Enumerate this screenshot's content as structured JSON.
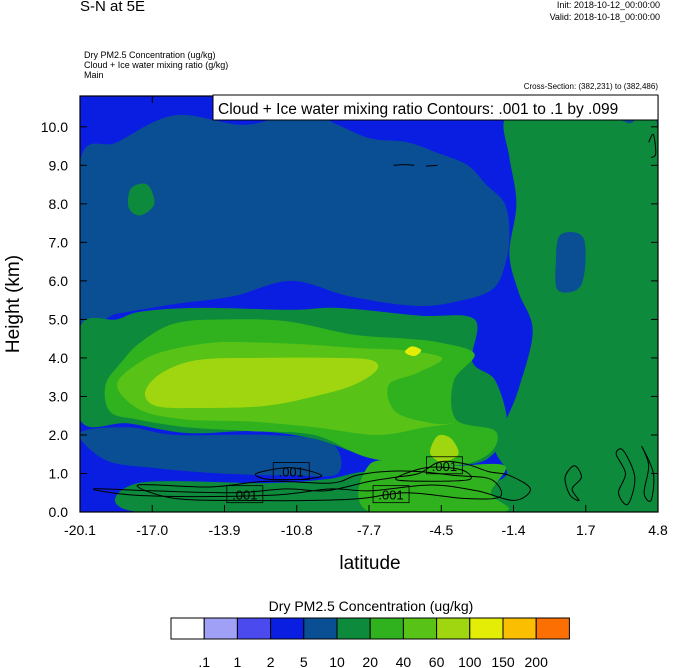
{
  "header": {
    "title": "S-N at 5E",
    "init": "Init: 2018-10-12_00:00:00",
    "valid": "Valid: 2018-10-18_00:00:00",
    "meta_lines": [
      "Dry PM2.5 Concentration   (ug/kg)",
      "Cloud + Ice water mixing ratio   (g/kg)",
      "Main"
    ],
    "cross_section": "Cross-Section: (382,231) to (382,486)"
  },
  "chart_data": {
    "type": "heatmap",
    "title": "",
    "contour_title": "Cloud + Ice water mixing ratio Contours: .001 to .1 by .099",
    "xlabel": "latitude",
    "ylabel": "Height (km)",
    "xlim": [
      -20.1,
      4.8
    ],
    "ylim": [
      0.0,
      10.8
    ],
    "x_ticks": [
      "-20.1",
      "-17.0",
      "-13.9",
      "-10.8",
      "-7.7",
      "-4.5",
      "-1.4",
      "1.7",
      "4.8"
    ],
    "y_ticks": [
      "0.0",
      "1.0",
      "2.0",
      "3.0",
      "4.0",
      "5.0",
      "6.0",
      "7.0",
      "8.0",
      "9.0",
      "10.0"
    ],
    "y_tick_values": [
      0,
      1,
      2,
      3,
      4,
      5,
      6,
      7,
      8,
      9,
      10
    ],
    "contour_labels": [
      {
        "text": ".001",
        "lat": -11.0,
        "h": 1.05
      },
      {
        "text": ".001",
        "lat": -13.0,
        "h": 0.45
      },
      {
        "text": ".001",
        "lat": -4.4,
        "h": 1.2
      },
      {
        "text": ".001",
        "lat": -6.7,
        "h": 0.45
      }
    ],
    "colorbar": {
      "title": "Dry PM2.5 Concentration  (ug/kg)",
      "labels": [
        ".1",
        "1",
        "2",
        "5",
        "10",
        "20",
        "40",
        "60",
        "100",
        "150",
        "200"
      ],
      "colors": [
        "#ffffff",
        "#a0a0f7",
        "#4a4aef",
        "#0a1ee1",
        "#0a4f94",
        "#0d8a3c",
        "#2fb21e",
        "#58c217",
        "#9fd60f",
        "#e4ed06",
        "#fcbe00",
        "#fc6f03",
        "#fb1010"
      ]
    },
    "regions": [
      {
        "lvl": 3,
        "pts": [
          [
            -20.1,
            0
          ],
          [
            4.8,
            0
          ],
          [
            4.8,
            10.8
          ],
          [
            -20.1,
            10.8
          ]
        ]
      },
      {
        "lvl": 4,
        "pts": [
          [
            -20.1,
            9.1
          ],
          [
            -18.5,
            9.6
          ],
          [
            -16,
            10.3
          ],
          [
            -13,
            10.05
          ],
          [
            -10.5,
            10.4
          ],
          [
            -9,
            10.05
          ],
          [
            -7.6,
            9.7
          ],
          [
            -6,
            9.6
          ],
          [
            -4.6,
            9.3
          ],
          [
            -3.4,
            9.0
          ],
          [
            -2.6,
            8.5
          ],
          [
            -1.8,
            8.0
          ],
          [
            -1.6,
            7.2
          ],
          [
            -1.8,
            6.4
          ],
          [
            -2.3,
            5.8
          ],
          [
            -3.6,
            5.5
          ],
          [
            -5.6,
            5.35
          ],
          [
            -8.5,
            5.6
          ],
          [
            -11,
            6.0
          ],
          [
            -13.5,
            5.6
          ],
          [
            -16,
            5.4
          ],
          [
            -18.5,
            5.15
          ],
          [
            -20.1,
            5.0
          ]
        ]
      },
      {
        "lvl": 4,
        "pts": [
          [
            -20.1,
            2.05
          ],
          [
            -19,
            1.35
          ],
          [
            -17,
            1.15
          ],
          [
            -14,
            1.0
          ],
          [
            -11,
            0.95
          ],
          [
            -9,
            1.0
          ],
          [
            -9.3,
            1.8
          ],
          [
            -12,
            2.0
          ],
          [
            -16,
            2.0
          ],
          [
            -18,
            2.2
          ]
        ]
      },
      {
        "lvl": 4,
        "pts": [
          [
            2.5,
            10.8
          ],
          [
            4.8,
            10.8
          ],
          [
            4.8,
            8.6
          ],
          [
            4.0,
            8.2
          ],
          [
            2.5,
            8.8
          ]
        ]
      },
      {
        "lvl": 4,
        "pts": [
          [
            -0.9,
            7.2
          ],
          [
            0.6,
            7.5
          ],
          [
            1.4,
            7.3
          ],
          [
            1.4,
            5.8
          ],
          [
            0.3,
            5.55
          ],
          [
            -0.9,
            6.1
          ]
        ]
      },
      {
        "lvl": 5,
        "pts": [
          [
            -1.8,
            10.2
          ],
          [
            -0.5,
            10.5
          ],
          [
            1.5,
            10.6
          ],
          [
            3.5,
            10.1
          ],
          [
            4.8,
            9.8
          ],
          [
            4.8,
            0
          ],
          [
            -1.8,
            0
          ],
          [
            -2.5,
            0.6
          ],
          [
            -1.7,
            1.0
          ],
          [
            -2.2,
            1.6
          ],
          [
            -1.8,
            2.3
          ],
          [
            -1.2,
            3.2
          ],
          [
            -0.6,
            4.7
          ],
          [
            -1.2,
            5.7
          ],
          [
            -1.6,
            6.7
          ],
          [
            -1.3,
            8.0
          ],
          [
            -1.6,
            9.2
          ]
        ]
      },
      {
        "lvl": 5,
        "pts": [
          [
            -20.1,
            4.8
          ],
          [
            -18.5,
            5.0
          ],
          [
            -17.5,
            5.2
          ],
          [
            -15,
            5.3
          ],
          [
            -11,
            5.25
          ],
          [
            -9,
            5.3
          ],
          [
            -5.5,
            5.1
          ],
          [
            -3.1,
            5.0
          ],
          [
            -3.2,
            3.9
          ],
          [
            -2.2,
            3.4
          ],
          [
            -1.7,
            2.2
          ],
          [
            -2.5,
            1.4
          ],
          [
            -4,
            1.2
          ],
          [
            -5.5,
            1.25
          ],
          [
            -8,
            1.5
          ],
          [
            -10,
            1.9
          ],
          [
            -12.5,
            2.1
          ],
          [
            -15.5,
            2.05
          ],
          [
            -18,
            2.3
          ],
          [
            -20.1,
            2.4
          ]
        ]
      },
      {
        "lvl": 5,
        "pts": [
          [
            -17.9,
            8.4
          ],
          [
            -17.2,
            8.5
          ],
          [
            -16.9,
            8.0
          ],
          [
            -17.5,
            7.7
          ],
          [
            -18,
            7.9
          ]
        ]
      },
      {
        "lvl": 5,
        "pts": [
          [
            -17.6,
            0.75
          ],
          [
            -12,
            0.75
          ],
          [
            -9.5,
            0.85
          ],
          [
            -7.6,
            1.0
          ],
          [
            -7.6,
            0
          ],
          [
            -17.6,
            0
          ]
        ]
      },
      {
        "lvl": 4,
        "pts": [
          [
            0.6,
            7.2
          ],
          [
            1.6,
            7.1
          ],
          [
            1.5,
            5.9
          ],
          [
            0.5,
            5.75
          ],
          [
            0.4,
            6.5
          ]
        ]
      },
      {
        "lvl": 6,
        "pts": [
          [
            -19,
            3.3
          ],
          [
            -18.3,
            3.9
          ],
          [
            -17.5,
            4.4
          ],
          [
            -16,
            4.9
          ],
          [
            -13.8,
            5.0
          ],
          [
            -11.2,
            4.95
          ],
          [
            -8.3,
            4.6
          ],
          [
            -6,
            4.5
          ],
          [
            -4.6,
            4.4
          ],
          [
            -3.1,
            4.1
          ],
          [
            -4.0,
            3.4
          ],
          [
            -3.9,
            2.4
          ],
          [
            -2.2,
            2.1
          ],
          [
            -2.5,
            1.5
          ],
          [
            -4.2,
            1.2
          ],
          [
            -7.6,
            1.4
          ],
          [
            -10,
            2.0
          ],
          [
            -12.8,
            2.1
          ],
          [
            -15.5,
            2.2
          ],
          [
            -17.6,
            2.4
          ],
          [
            -18.8,
            2.6
          ]
        ]
      },
      {
        "lvl": 6,
        "pts": [
          [
            -7.6,
            0
          ],
          [
            -1.9,
            0
          ],
          [
            -2.4,
            0.5
          ],
          [
            -1.8,
            1.2
          ],
          [
            -4,
            1.2
          ],
          [
            -5.5,
            1.25
          ],
          [
            -7.6,
            1.25
          ]
        ]
      },
      {
        "lvl": 7,
        "pts": [
          [
            -18.5,
            3.3
          ],
          [
            -17.5,
            3.9
          ],
          [
            -16.3,
            4.2
          ],
          [
            -14.3,
            4.4
          ],
          [
            -12.5,
            4.4
          ],
          [
            -10.4,
            4.35
          ],
          [
            -8,
            4.25
          ],
          [
            -6.2,
            4.2
          ],
          [
            -4.5,
            4.0
          ],
          [
            -5.6,
            3.6
          ],
          [
            -6.8,
            3.3
          ],
          [
            -6.5,
            2.6
          ],
          [
            -4.9,
            2.3
          ],
          [
            -4.0,
            2.3
          ],
          [
            -5.2,
            2.2
          ],
          [
            -7.3,
            2.0
          ],
          [
            -10,
            2.2
          ],
          [
            -12.8,
            2.35
          ],
          [
            -15.5,
            2.4
          ],
          [
            -17.5,
            2.65
          ]
        ]
      },
      {
        "lvl": 8,
        "pts": [
          [
            -17.3,
            3.1
          ],
          [
            -16.6,
            3.6
          ],
          [
            -15,
            3.95
          ],
          [
            -12.2,
            4.0
          ],
          [
            -9.3,
            4.0
          ],
          [
            -7.6,
            3.95
          ],
          [
            -7.3,
            3.7
          ],
          [
            -8.3,
            3.3
          ],
          [
            -10,
            3.0
          ],
          [
            -12.2,
            2.75
          ],
          [
            -15,
            2.7
          ],
          [
            -16.8,
            2.75
          ]
        ]
      },
      {
        "lvl": 8,
        "pts": [
          [
            -4.9,
            1.8
          ],
          [
            -4.6,
            2.0
          ],
          [
            -4.1,
            1.9
          ],
          [
            -3.8,
            1.5
          ],
          [
            -4.5,
            1.3
          ],
          [
            -5.0,
            1.5
          ]
        ]
      },
      {
        "lvl": 9,
        "pts": [
          [
            -6.1,
            4.15
          ],
          [
            -5.8,
            4.3
          ],
          [
            -5.4,
            4.2
          ],
          [
            -5.7,
            4.05
          ]
        ]
      }
    ],
    "contours": [
      [
        [
          -19.5,
          0.6
        ],
        [
          -17,
          0.55
        ],
        [
          -13.5,
          0.5
        ],
        [
          -11.2,
          0.6
        ],
        [
          -9.5,
          0.55
        ],
        [
          -7.6,
          0.8
        ],
        [
          -6.5,
          0.9
        ],
        [
          -5.5,
          1.0
        ],
        [
          -4.6,
          1.3
        ],
        [
          -3.5,
          1.25
        ],
        [
          -2.5,
          1.05
        ],
        [
          -1.6,
          0.95
        ],
        [
          -0.7,
          0.6
        ],
        [
          -1.4,
          0.3
        ],
        [
          -3,
          0.55
        ],
        [
          -5,
          0.7
        ],
        [
          -7.6,
          0.55
        ],
        [
          -9.3,
          0.6
        ],
        [
          -11.5,
          0.45
        ],
        [
          -15,
          0.4
        ],
        [
          -18,
          0.45
        ]
      ],
      [
        [
          -17.6,
          0.7
        ],
        [
          -14.5,
          0.65
        ],
        [
          -12,
          0.8
        ],
        [
          -9.3,
          0.75
        ],
        [
          -8.2,
          0.95
        ],
        [
          -7,
          1.05
        ],
        [
          -5.5,
          1.05
        ],
        [
          -4.0,
          0.95
        ],
        [
          -2.4,
          0.85
        ],
        [
          -2.0,
          0.4
        ],
        [
          -3.5,
          0.35
        ],
        [
          -6,
          0.5
        ],
        [
          -8,
          0.35
        ],
        [
          -10,
          0.3
        ],
        [
          -13,
          0.3
        ],
        [
          -16,
          0.35
        ]
      ],
      [
        [
          -12.5,
          1.0
        ],
        [
          -11,
          1.15
        ],
        [
          -9.7,
          0.95
        ],
        [
          -10.5,
          0.85
        ],
        [
          -12,
          0.85
        ]
      ],
      [
        [
          -6.5,
          0.85
        ],
        [
          -5.2,
          1.15
        ],
        [
          -3.7,
          1.1
        ],
        [
          -3.3,
          0.85
        ],
        [
          -4.8,
          0.8
        ]
      ],
      [
        [
          1.2,
          1.2
        ],
        [
          1.5,
          0.9
        ],
        [
          1.1,
          0.6
        ],
        [
          1.4,
          0.3
        ],
        [
          1.0,
          0.45
        ],
        [
          0.8,
          0.9
        ]
      ],
      [
        [
          3.0,
          1.5
        ],
        [
          3.4,
          1.0
        ],
        [
          3.1,
          0.5
        ],
        [
          3.5,
          0.2
        ],
        [
          3.8,
          0.9
        ],
        [
          3.3,
          1.6
        ]
      ],
      [
        [
          4.1,
          1.7
        ],
        [
          4.4,
          1.2
        ],
        [
          4.2,
          0.5
        ],
        [
          4.5,
          0.3
        ],
        [
          4.6,
          1.0
        ]
      ],
      [
        [
          4.4,
          9.6
        ],
        [
          4.6,
          9.8
        ],
        [
          4.7,
          9.3
        ],
        [
          4.5,
          9.2
        ]
      ],
      [
        [
          -6.6,
          9.0
        ],
        [
          -6.1,
          9.02
        ],
        [
          -5.7,
          9.0
        ]
      ],
      [
        [
          -5.2,
          8.98
        ],
        [
          -4.7,
          9.0
        ]
      ]
    ]
  }
}
